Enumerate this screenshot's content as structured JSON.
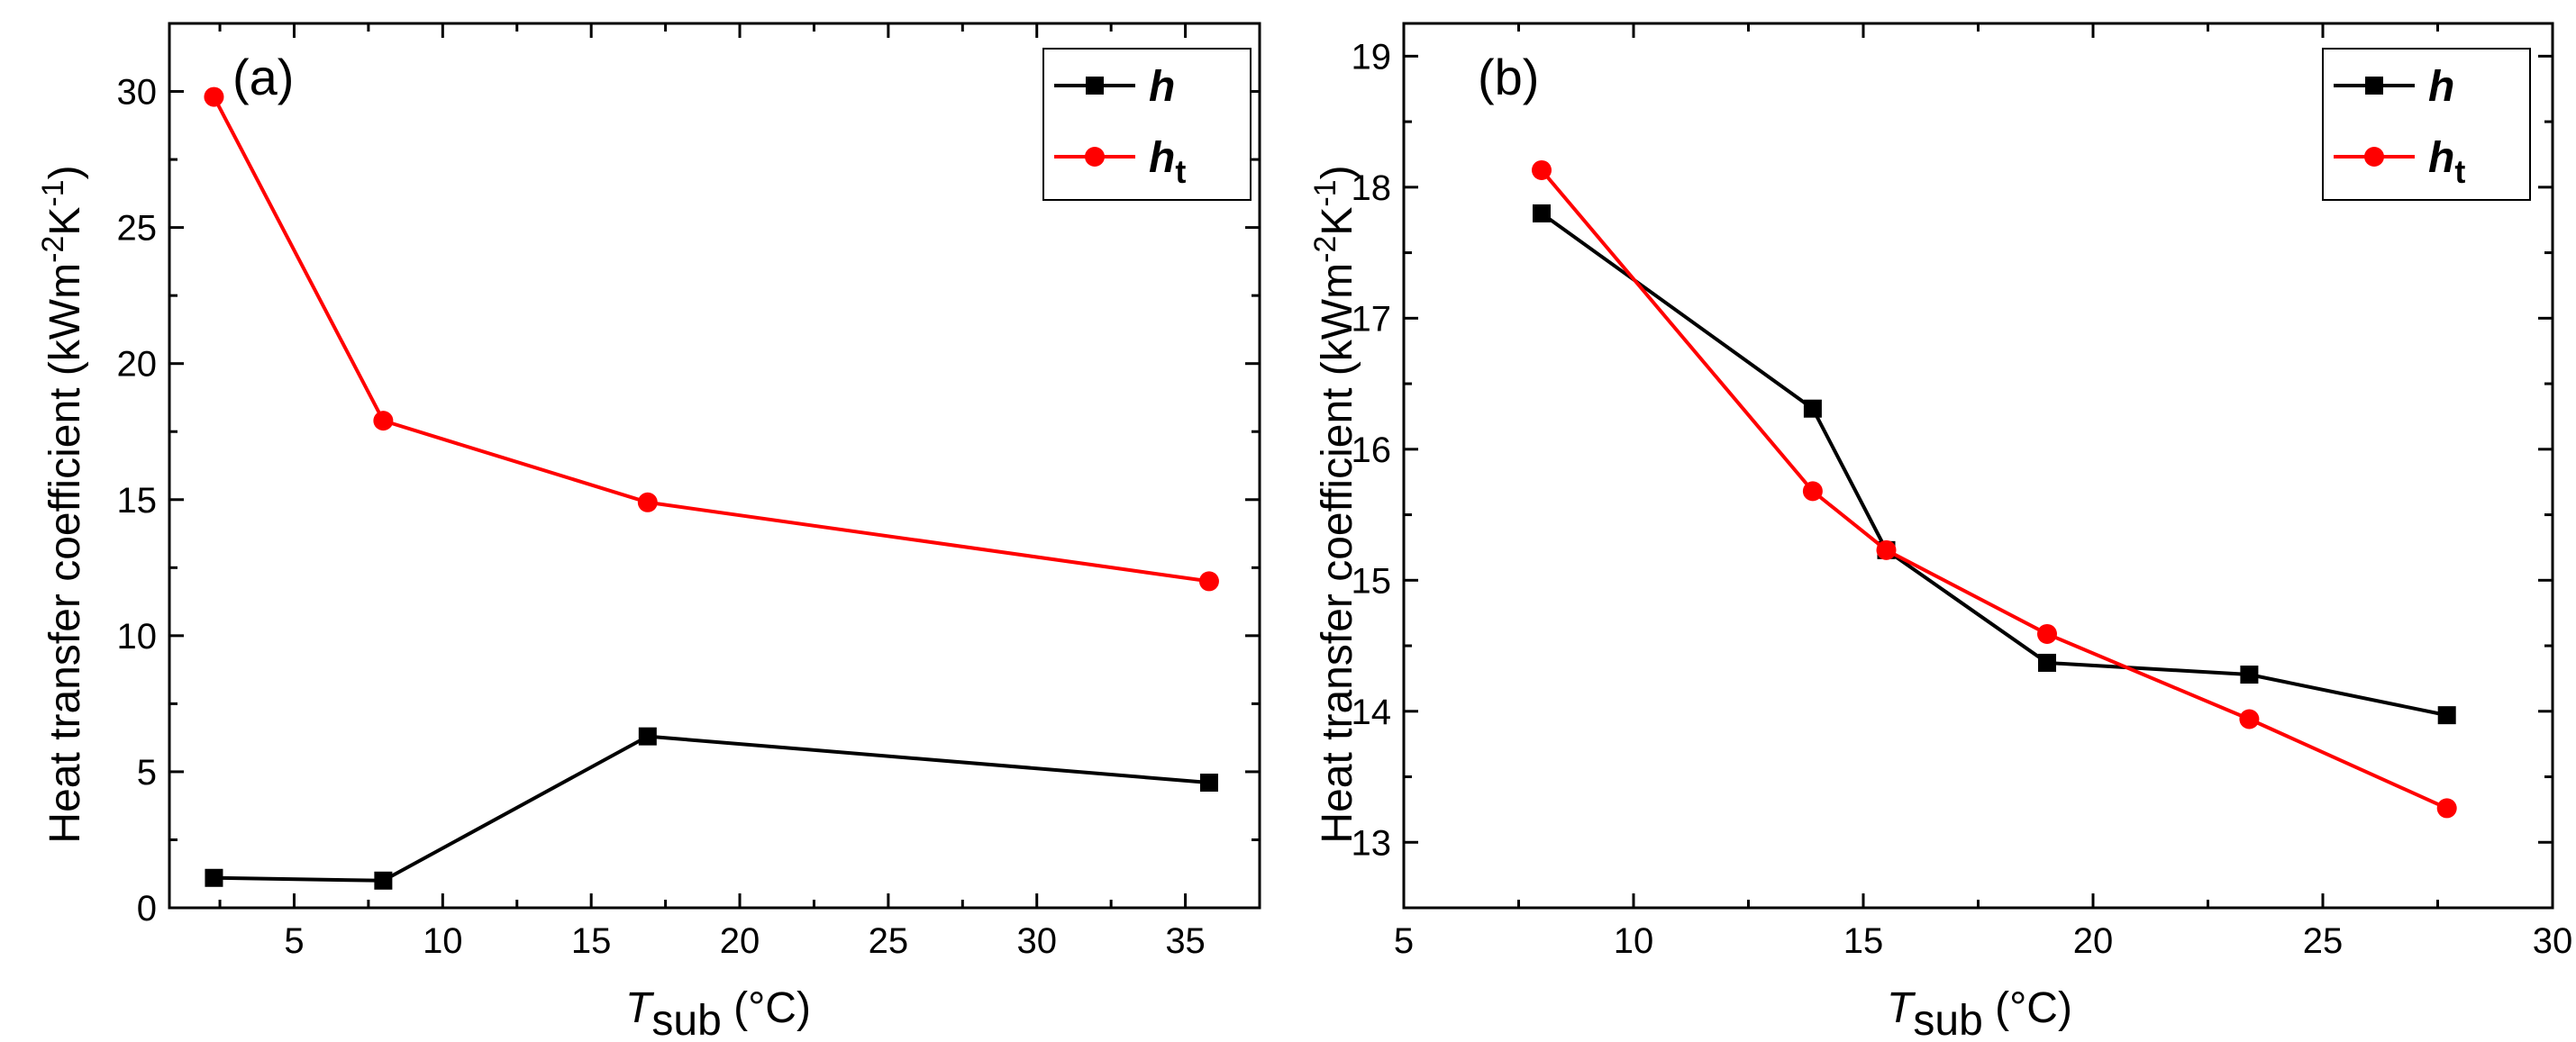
{
  "chart_data": [
    {
      "type": "line",
      "panel_label": "(a)",
      "xlabel": {
        "main": "T",
        "sub": "sub",
        "unit": " (°C)"
      },
      "ylabel": {
        "prefix": "Heat transfer coefficient (kWm",
        "exp1": "-2",
        "mid": "K",
        "exp2": "-1",
        "suffix": ")"
      },
      "xlim": [
        0.8,
        37.5
      ],
      "ylim": [
        0,
        32.5
      ],
      "xticks": [
        5,
        10,
        15,
        20,
        25,
        30,
        35
      ],
      "yticks": [
        0,
        5,
        10,
        15,
        20,
        25,
        30
      ],
      "legend_position": "top-right",
      "series": [
        {
          "name": "h",
          "name_sub": "",
          "color": "#000000",
          "marker": "square",
          "x": [
            2.3,
            8.0,
            16.9,
            35.8
          ],
          "y": [
            1.1,
            1.0,
            6.3,
            4.6
          ]
        },
        {
          "name": "h",
          "name_sub": "t",
          "color": "#ff0000",
          "marker": "circle",
          "x": [
            2.3,
            8.0,
            16.9,
            35.8
          ],
          "y": [
            29.8,
            17.9,
            14.9,
            12.0
          ]
        }
      ]
    },
    {
      "type": "line",
      "panel_label": "(b)",
      "xlabel": {
        "main": "T",
        "sub": "sub",
        "unit": " (°C)"
      },
      "ylabel": {
        "prefix": "Heat transfer coefficient (kWm",
        "exp1": "-2",
        "mid": "K",
        "exp2": "-1",
        "suffix": ")"
      },
      "xlim": [
        5,
        30
      ],
      "ylim": [
        12.5,
        19.25
      ],
      "xticks": [
        5,
        10,
        15,
        20,
        25,
        30
      ],
      "yticks": [
        13,
        14,
        15,
        16,
        17,
        18,
        19
      ],
      "legend_position": "top-right",
      "series": [
        {
          "name": "h",
          "name_sub": "",
          "color": "#000000",
          "marker": "square",
          "x": [
            8.0,
            13.9,
            15.5,
            19.0,
            23.4,
            27.7
          ],
          "y": [
            17.8,
            16.31,
            15.23,
            14.37,
            14.28,
            13.97
          ]
        },
        {
          "name": "h",
          "name_sub": "t",
          "color": "#ff0000",
          "marker": "circle",
          "x": [
            8.0,
            13.9,
            15.5,
            19.0,
            23.4,
            27.7
          ],
          "y": [
            18.13,
            15.68,
            15.23,
            14.59,
            13.94,
            13.26
          ]
        }
      ]
    }
  ]
}
